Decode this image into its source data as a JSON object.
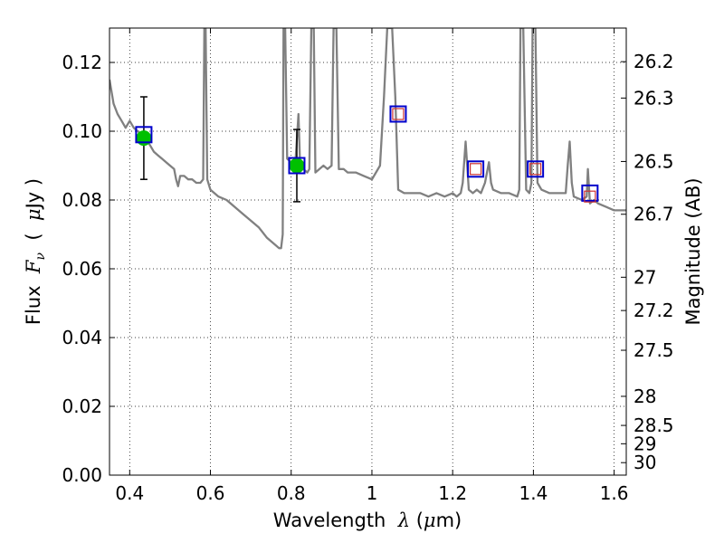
{
  "chart_data": {
    "type": "scatter",
    "xlabel": {
      "pre": "Wavelength  ",
      "sym": "λ",
      "post": " (",
      "mu": "μ",
      "unit": "m)"
    },
    "ylabel": {
      "pre": "Flux  ",
      "sym": "F",
      "sub": "ν",
      "mid": "  (  ",
      "mu": "μ",
      "unit": "Jy )"
    },
    "ylabel_right": "Magnitude (AB)",
    "xlim": [
      0.35,
      1.63
    ],
    "ylim": [
      0.0,
      0.13
    ],
    "x_ticks": [
      0.4,
      0.6,
      0.8,
      1.0,
      1.2,
      1.4,
      1.6
    ],
    "x_tick_labels": [
      "0.4",
      "0.6",
      "0.8",
      "1",
      "1.2",
      "1.4",
      "1.6"
    ],
    "y_ticks": [
      0.0,
      0.02,
      0.04,
      0.06,
      0.08,
      0.1,
      0.12
    ],
    "y_tick_labels": [
      "0.00",
      "0.02",
      "0.04",
      "0.06",
      "0.08",
      "0.10",
      "0.12"
    ],
    "right_ticks": [
      {
        "mag": 26.2,
        "label": "26.2"
      },
      {
        "mag": 26.3,
        "label": "26.3"
      },
      {
        "mag": 26.5,
        "label": "26.5"
      },
      {
        "mag": 26.7,
        "label": "26.7"
      },
      {
        "mag": 27.0,
        "label": "27"
      },
      {
        "mag": 27.2,
        "label": "27.2"
      },
      {
        "mag": 27.5,
        "label": "27.5"
      },
      {
        "mag": 28.0,
        "label": "28"
      },
      {
        "mag": 28.5,
        "label": "28.5"
      },
      {
        "mag": 29.0,
        "label": "29"
      },
      {
        "mag": 30.0,
        "label": "30"
      }
    ],
    "grid": true,
    "colors": {
      "model": "#808080",
      "observed": "#00c000",
      "model_box": "#0000cc",
      "synthetic_box": "#cc3333",
      "errorbar": "#000000"
    },
    "model_spectrum": [
      [
        0.35,
        0.115
      ],
      [
        0.36,
        0.108
      ],
      [
        0.37,
        0.105
      ],
      [
        0.38,
        0.103
      ],
      [
        0.39,
        0.101
      ],
      [
        0.4,
        0.103
      ],
      [
        0.41,
        0.101
      ],
      [
        0.42,
        0.1
      ],
      [
        0.43,
        0.099
      ],
      [
        0.44,
        0.098
      ],
      [
        0.45,
        0.096
      ],
      [
        0.46,
        0.094
      ],
      [
        0.47,
        0.093
      ],
      [
        0.48,
        0.092
      ],
      [
        0.49,
        0.091
      ],
      [
        0.5,
        0.09
      ],
      [
        0.51,
        0.089
      ],
      [
        0.515,
        0.086
      ],
      [
        0.52,
        0.084
      ],
      [
        0.525,
        0.087
      ],
      [
        0.535,
        0.087
      ],
      [
        0.545,
        0.086
      ],
      [
        0.555,
        0.086
      ],
      [
        0.565,
        0.085
      ],
      [
        0.575,
        0.085
      ],
      [
        0.582,
        0.086
      ],
      [
        0.585,
        0.13
      ],
      [
        0.588,
        0.13
      ],
      [
        0.592,
        0.086
      ],
      [
        0.6,
        0.083
      ],
      [
        0.62,
        0.081
      ],
      [
        0.64,
        0.08
      ],
      [
        0.66,
        0.078
      ],
      [
        0.68,
        0.076
      ],
      [
        0.7,
        0.074
      ],
      [
        0.72,
        0.072
      ],
      [
        0.74,
        0.069
      ],
      [
        0.76,
        0.067
      ],
      [
        0.77,
        0.066
      ],
      [
        0.775,
        0.066
      ],
      [
        0.779,
        0.07
      ],
      [
        0.781,
        0.13
      ],
      [
        0.785,
        0.13
      ],
      [
        0.79,
        0.092
      ],
      [
        0.8,
        0.091
      ],
      [
        0.81,
        0.09
      ],
      [
        0.818,
        0.105
      ],
      [
        0.822,
        0.09
      ],
      [
        0.83,
        0.089
      ],
      [
        0.84,
        0.088
      ],
      [
        0.845,
        0.089
      ],
      [
        0.85,
        0.13
      ],
      [
        0.856,
        0.13
      ],
      [
        0.86,
        0.088
      ],
      [
        0.87,
        0.089
      ],
      [
        0.88,
        0.09
      ],
      [
        0.89,
        0.089
      ],
      [
        0.9,
        0.09
      ],
      [
        0.905,
        0.13
      ],
      [
        0.912,
        0.13
      ],
      [
        0.918,
        0.089
      ],
      [
        0.93,
        0.089
      ],
      [
        0.94,
        0.088
      ],
      [
        0.96,
        0.088
      ],
      [
        0.98,
        0.087
      ],
      [
        1.0,
        0.086
      ],
      [
        1.02,
        0.09
      ],
      [
        1.03,
        0.11
      ],
      [
        1.038,
        0.13
      ],
      [
        1.05,
        0.13
      ],
      [
        1.058,
        0.11
      ],
      [
        1.065,
        0.083
      ],
      [
        1.08,
        0.082
      ],
      [
        1.1,
        0.082
      ],
      [
        1.12,
        0.082
      ],
      [
        1.14,
        0.081
      ],
      [
        1.16,
        0.082
      ],
      [
        1.18,
        0.081
      ],
      [
        1.2,
        0.082
      ],
      [
        1.21,
        0.081
      ],
      [
        1.22,
        0.082
      ],
      [
        1.225,
        0.085
      ],
      [
        1.232,
        0.097
      ],
      [
        1.24,
        0.083
      ],
      [
        1.25,
        0.082
      ],
      [
        1.26,
        0.083
      ],
      [
        1.27,
        0.082
      ],
      [
        1.28,
        0.085
      ],
      [
        1.29,
        0.091
      ],
      [
        1.295,
        0.085
      ],
      [
        1.3,
        0.083
      ],
      [
        1.32,
        0.082
      ],
      [
        1.34,
        0.082
      ],
      [
        1.36,
        0.081
      ],
      [
        1.365,
        0.083
      ],
      [
        1.368,
        0.13
      ],
      [
        1.375,
        0.13
      ],
      [
        1.382,
        0.083
      ],
      [
        1.39,
        0.082
      ],
      [
        1.395,
        0.085
      ],
      [
        1.398,
        0.13
      ],
      [
        1.405,
        0.13
      ],
      [
        1.41,
        0.085
      ],
      [
        1.42,
        0.083
      ],
      [
        1.44,
        0.082
      ],
      [
        1.46,
        0.082
      ],
      [
        1.48,
        0.082
      ],
      [
        1.485,
        0.09
      ],
      [
        1.49,
        0.097
      ],
      [
        1.495,
        0.085
      ],
      [
        1.5,
        0.081
      ],
      [
        1.52,
        0.08
      ],
      [
        1.532,
        0.081
      ],
      [
        1.535,
        0.089
      ],
      [
        1.54,
        0.079
      ],
      [
        1.55,
        0.08
      ],
      [
        1.56,
        0.079
      ],
      [
        1.58,
        0.078
      ],
      [
        1.6,
        0.077
      ],
      [
        1.63,
        0.077
      ]
    ],
    "observed_points": [
      {
        "x": 0.435,
        "y": 0.098,
        "yerr": 0.012
      },
      {
        "x": 0.814,
        "y": 0.09,
        "yerr": 0.0105
      }
    ],
    "model_photometry": [
      {
        "x": 0.435,
        "y": 0.099
      },
      {
        "x": 0.814,
        "y": 0.09
      },
      {
        "x": 1.065,
        "y": 0.105
      },
      {
        "x": 1.257,
        "y": 0.089
      },
      {
        "x": 1.405,
        "y": 0.089
      },
      {
        "x": 1.54,
        "y": 0.082
      }
    ],
    "synthetic_photometry": [
      {
        "x": 1.065,
        "y": 0.105
      },
      {
        "x": 1.257,
        "y": 0.089
      },
      {
        "x": 1.405,
        "y": 0.089
      },
      {
        "x": 1.54,
        "y": 0.081
      }
    ]
  }
}
